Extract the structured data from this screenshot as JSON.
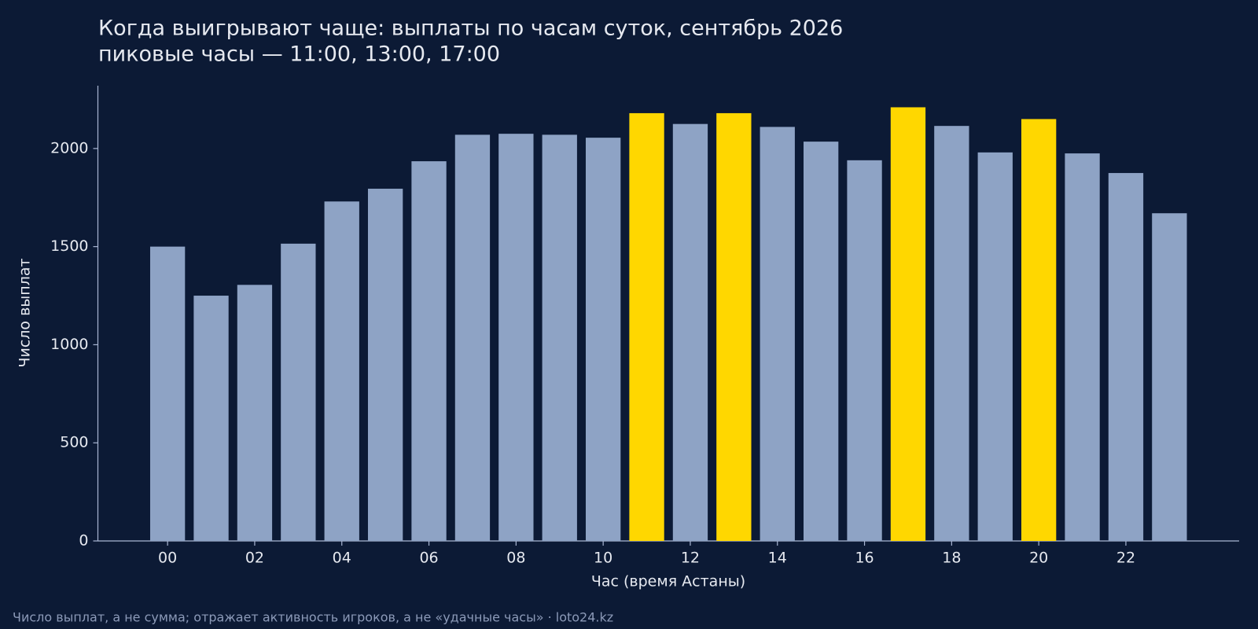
{
  "chart_data": {
    "type": "bar",
    "title": "Когда выигрывают чаще: выплаты по часам суток, сентябрь 2026",
    "subtitle": "пиковые часы — 11:00, 13:00, 17:00",
    "x_label": "Час (время Астаны)",
    "y_label": "Число выплат",
    "note": "Число выплат, а не сумма; отражает активность игроков, а не «удачные часы» · loto24.kz",
    "categories": [
      "00",
      null,
      "02",
      null,
      "04",
      null,
      "06",
      null,
      "08",
      null,
      "10",
      null,
      "12",
      null,
      "14",
      null,
      "16",
      null,
      "18",
      null,
      "20",
      null,
      "22",
      null
    ],
    "values": [
      1500,
      1250,
      1305,
      1515,
      1730,
      1795,
      1935,
      2070,
      2075,
      2070,
      2055,
      2180,
      2125,
      2180,
      2110,
      2035,
      1940,
      2210,
      2115,
      1980,
      2150,
      1975,
      1875,
      1670
    ],
    "colors": [
      "#8ea3c5",
      "#8ea3c5",
      "#8ea3c5",
      "#8ea3c5",
      "#8ea3c5",
      "#8ea3c5",
      "#8ea3c5",
      "#8ea3c5",
      "#8ea3c5",
      "#8ea3c5",
      "#8ea3c5",
      "#ffd700",
      "#8ea3c5",
      "#ffd700",
      "#8ea3c5",
      "#8ea3c5",
      "#8ea3c5",
      "#ffd700",
      "#8ea3c5",
      "#8ea3c5",
      "#ffd700",
      "#8ea3c5",
      "#8ea3c5",
      "#8ea3c5"
    ],
    "ylim": [
      0,
      2320
    ],
    "yticks": [
      0,
      500,
      1000,
      1500,
      2000
    ],
    "grid": false
  }
}
